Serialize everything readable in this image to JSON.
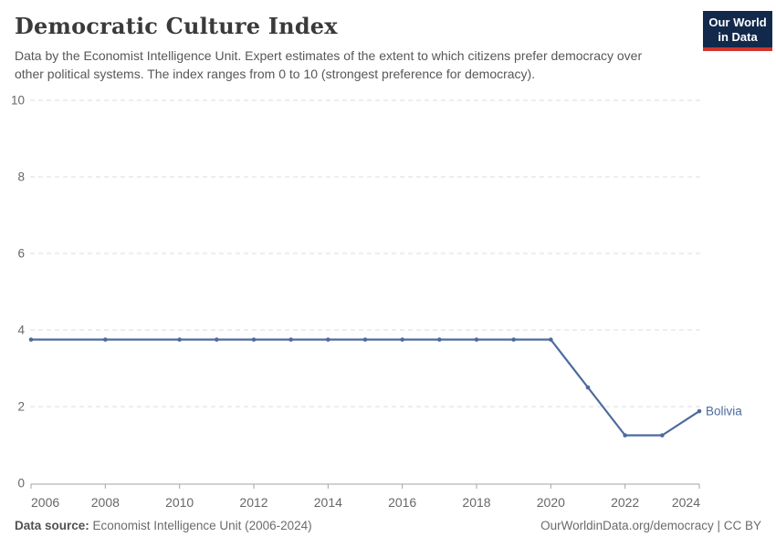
{
  "header": {
    "title": "Democratic Culture Index",
    "subtitle_line1": "Data by the Economist Intelligence Unit. Expert estimates of the extent to which citizens prefer democracy over",
    "subtitle_line2": "other political systems. The index ranges from 0 to 10 (strongest preference for democracy)."
  },
  "logo": {
    "line1": "Our World",
    "line2": "in Data",
    "bg_color": "#12294b",
    "stripe_color": "#d0342c"
  },
  "footer": {
    "source_label": "Data source:",
    "source_value": " Economist Intelligence Unit (2006-2024)",
    "credit": "OurWorldinData.org/democracy | CC BY"
  },
  "chart_data": {
    "type": "line",
    "title": "Democratic Culture Index",
    "x": [
      2006,
      2008,
      2010,
      2011,
      2012,
      2013,
      2014,
      2015,
      2016,
      2017,
      2018,
      2019,
      2020,
      2021,
      2022,
      2023,
      2024
    ],
    "series": [
      {
        "name": "Bolivia",
        "color": "#4c6a9c",
        "values": [
          3.75,
          3.75,
          3.75,
          3.75,
          3.75,
          3.75,
          3.75,
          3.75,
          3.75,
          3.75,
          3.75,
          3.75,
          3.75,
          2.5,
          1.25,
          1.25,
          1.88
        ]
      }
    ],
    "end_label": "Bolivia",
    "xlim": [
      2006,
      2024
    ],
    "ylim": [
      0,
      10
    ],
    "xticks": [
      2006,
      2008,
      2010,
      2012,
      2014,
      2016,
      2018,
      2020,
      2022,
      2024
    ],
    "yticks": [
      0,
      2,
      4,
      6,
      8,
      10
    ],
    "grid": "horizontal-dashed",
    "grid_color": "#dcdcdc",
    "axis_color": "#a3a3a3",
    "tick_label_color": "#676767",
    "legend_position": "end-of-line"
  }
}
